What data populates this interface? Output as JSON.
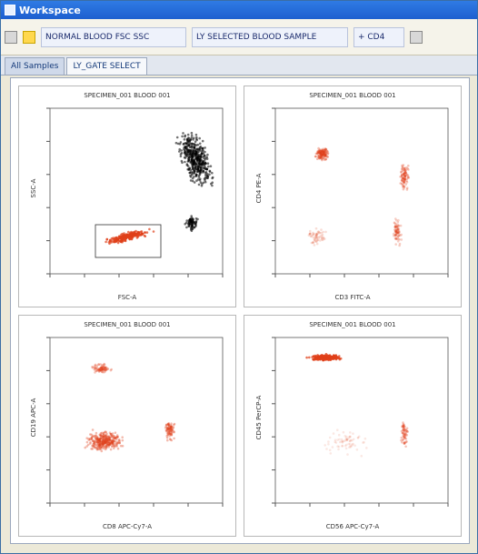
{
  "window": {
    "title": "Workspace"
  },
  "toolbar": {
    "buttons": [
      {
        "label": "NORMAL BLOOD FSC SSC"
      },
      {
        "label": "LY SELECTED BLOOD SAMPLE"
      },
      {
        "label": "+ CD4"
      }
    ]
  },
  "tabs": [
    {
      "label": "All Samples"
    },
    {
      "label": "LY_GATE SELECT"
    }
  ],
  "panels": [
    {
      "title": "SPECIMEN_001 BLOOD 001",
      "xlabel": "FSC-A",
      "ylabel": "SSC-A"
    },
    {
      "title": "SPECIMEN_001 BLOOD 001",
      "xlabel": "CD3 FITC-A",
      "ylabel": "CD4 PE-A"
    },
    {
      "title": "SPECIMEN_001 BLOOD 001",
      "xlabel": "CD8 APC-Cy7-A",
      "ylabel": "CD19 APC-A"
    },
    {
      "title": "SPECIMEN_001 BLOOD 001",
      "xlabel": "CD56 APC-Cy7-A",
      "ylabel": "CD45 PerCP-A"
    }
  ],
  "colors": {
    "density": "#e0401a",
    "scatter": "#000000",
    "accent": "#1d5fcf"
  }
}
